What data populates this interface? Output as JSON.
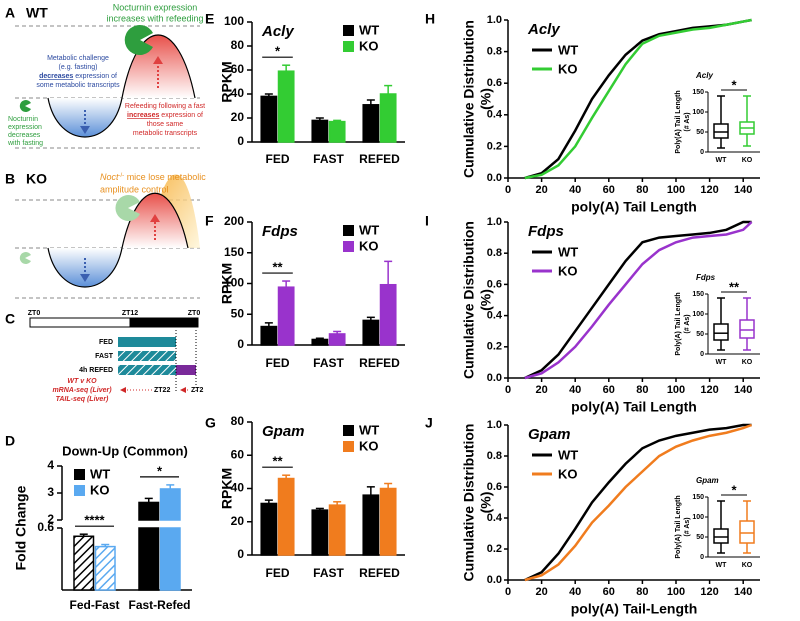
{
  "panel_letters": [
    "A",
    "B",
    "C",
    "D",
    "E",
    "F",
    "G",
    "H",
    "I",
    "J"
  ],
  "diagram_a": {
    "title": "WT",
    "noct_up": [
      "Nocturnin expression",
      "increases with refeeding"
    ],
    "challenge": [
      "Metabolic challenge",
      "(e.g. fasting)"
    ],
    "challenge_em": "decreases",
    "challenge_rest": [
      " expression of",
      "some metabolic transcripts"
    ],
    "noct_down": [
      "Nocturnin",
      "expression",
      "decreases",
      "with fasting"
    ],
    "refeed": "Refeeding following a fast",
    "refeed_em": "increases",
    "refeed_rest": [
      " expression of",
      "those same",
      "metabolic transcripts"
    ]
  },
  "diagram_b": {
    "title": "KO",
    "gene": "Noct",
    "genotype": "-/-",
    "note": [
      " mice lose metabolic",
      "amplitude control"
    ]
  },
  "diagram_c": {
    "zt_top": [
      "ZT0",
      "ZT12",
      "ZT0"
    ],
    "rows": [
      "FED",
      "FAST",
      "4h REFED"
    ],
    "assay": [
      "WT v KO",
      "mRNA-seq (Liver)",
      "TAIL-seq (Liver)"
    ],
    "zt_markers": [
      "ZT22",
      "ZT2"
    ]
  },
  "chart_data": [
    {
      "type": "bar",
      "title": "Down-Up (Common)",
      "ylabel": "Fold Change",
      "categories": [
        "Fed-Fast",
        "Fast-Refed"
      ],
      "hatched": [
        true,
        false
      ],
      "legend": "upper left",
      "segments": [
        {
          "ylim": [
            0,
            0.6
          ],
          "yticks": [
            0.6
          ]
        },
        {
          "ylim": [
            2,
            4
          ],
          "yticks": [
            2,
            3,
            4
          ]
        }
      ],
      "series": [
        {
          "name": "WT",
          "color": "#000000",
          "values": [
            0.52,
            2.65
          ],
          "errors": [
            0.02,
            0.15
          ]
        },
        {
          "name": "KO",
          "color": "#5aa9f0",
          "values": [
            0.42,
            3.15
          ],
          "errors": [
            0.02,
            0.15
          ]
        }
      ],
      "significance": [
        "****",
        "*"
      ]
    },
    {
      "type": "bar",
      "title": "Acly",
      "ylabel": "RPKM",
      "categories": [
        "FED",
        "FAST",
        "REFED"
      ],
      "legend": "upper right",
      "ylim": [
        0,
        100
      ],
      "yticks": [
        0,
        20,
        40,
        60,
        80,
        100
      ],
      "series": [
        {
          "name": "WT",
          "color": "#000000",
          "values": [
            38,
            18,
            31
          ],
          "errors": [
            2,
            2,
            4
          ]
        },
        {
          "name": "KO",
          "color": "#33cc33",
          "values": [
            59,
            17,
            40
          ],
          "errors": [
            5,
            1,
            7
          ]
        }
      ],
      "significance": [
        "*",
        null,
        null
      ]
    },
    {
      "type": "bar",
      "title": "Fdps",
      "ylabel": "RPKM",
      "categories": [
        "FED",
        "FAST",
        "REFED"
      ],
      "legend": "upper right",
      "ylim": [
        0,
        200
      ],
      "yticks": [
        0,
        50,
        100,
        150,
        200
      ],
      "series": [
        {
          "name": "WT",
          "color": "#000000",
          "values": [
            30,
            9,
            40
          ],
          "errors": [
            6,
            2,
            5
          ]
        },
        {
          "name": "KO",
          "color": "#9933cc",
          "values": [
            94,
            18,
            98
          ],
          "errors": [
            10,
            4,
            38
          ]
        }
      ],
      "significance": [
        "**",
        null,
        null
      ]
    },
    {
      "type": "bar",
      "title": "Gpam",
      "ylabel": "RPKM",
      "categories": [
        "FED",
        "FAST",
        "REFED"
      ],
      "legend": "upper right",
      "ylim": [
        0,
        80
      ],
      "yticks": [
        0,
        20,
        40,
        60,
        80
      ],
      "series": [
        {
          "name": "WT",
          "color": "#000000",
          "values": [
            31,
            27,
            36
          ],
          "errors": [
            2,
            1,
            5
          ]
        },
        {
          "name": "KO",
          "color": "#f07c1e",
          "values": [
            46,
            30,
            40
          ],
          "errors": [
            2,
            2,
            3
          ]
        }
      ],
      "significance": [
        "**",
        null,
        null
      ]
    },
    {
      "type": "line",
      "title": "Acly",
      "xlabel": "poly(A) Tail Length",
      "ylabel": [
        "Cumulative Distribution",
        "(%)"
      ],
      "legend": "upper left",
      "xlim": [
        0,
        150
      ],
      "xticks": [
        0,
        20,
        40,
        60,
        80,
        100,
        120,
        140
      ],
      "ylim": [
        0,
        1
      ],
      "yticks": [
        {
          "value": 0,
          "label": "0.0"
        },
        0.2,
        0.4,
        0.6,
        0.8,
        {
          "value": 1,
          "label": "1.0"
        }
      ],
      "x": [
        10,
        20,
        30,
        40,
        50,
        60,
        70,
        80,
        90,
        100,
        110,
        120,
        130,
        140,
        145
      ],
      "series": [
        {
          "name": "WT",
          "color": "#000000",
          "values": [
            0,
            0.03,
            0.12,
            0.3,
            0.5,
            0.65,
            0.78,
            0.87,
            0.91,
            0.93,
            0.95,
            0.96,
            0.97,
            0.99,
            1
          ]
        },
        {
          "name": "KO",
          "color": "#33cc33",
          "values": [
            0,
            0.02,
            0.08,
            0.2,
            0.38,
            0.55,
            0.72,
            0.85,
            0.9,
            0.92,
            0.94,
            0.95,
            0.97,
            0.99,
            1
          ]
        }
      ],
      "inset": {
        "title": "Acly",
        "ylabel": [
          "Poly(A) Tail Length",
          "(# As)"
        ],
        "ylim": [
          0,
          150
        ],
        "yticks": [
          0,
          50,
          100,
          150
        ],
        "categories": [
          "WT",
          "KO"
        ],
        "significance": "*",
        "boxes": [
          {
            "color": "#000000",
            "min": 10,
            "q1": 35,
            "median": 50,
            "q3": 70,
            "max": 140
          },
          {
            "color": "#33cc33",
            "min": 15,
            "q1": 45,
            "median": 60,
            "q3": 75,
            "max": 140
          }
        ]
      }
    },
    {
      "type": "line",
      "title": "Fdps",
      "xlabel": "poly(A) Tail Length",
      "ylabel": [
        "Cumulative Distribution",
        "(%)"
      ],
      "legend": "upper left",
      "xlim": [
        0,
        150
      ],
      "xticks": [
        0,
        20,
        40,
        60,
        80,
        100,
        120,
        140
      ],
      "ylim": [
        0,
        1
      ],
      "yticks": [
        {
          "value": 0,
          "label": "0.0"
        },
        0.2,
        0.4,
        0.6,
        0.8,
        {
          "value": 1,
          "label": "1.0"
        }
      ],
      "x": [
        10,
        20,
        30,
        40,
        50,
        60,
        70,
        80,
        90,
        100,
        110,
        120,
        130,
        140,
        145
      ],
      "series": [
        {
          "name": "WT",
          "color": "#000000",
          "values": [
            0,
            0.05,
            0.15,
            0.3,
            0.45,
            0.6,
            0.75,
            0.87,
            0.9,
            0.91,
            0.92,
            0.93,
            0.95,
            1,
            1
          ]
        },
        {
          "name": "KO",
          "color": "#9933cc",
          "values": [
            0,
            0.03,
            0.1,
            0.2,
            0.33,
            0.47,
            0.6,
            0.73,
            0.82,
            0.87,
            0.9,
            0.91,
            0.92,
            0.95,
            1
          ]
        }
      ],
      "inset": {
        "title": "Fdps",
        "ylabel": [
          "Poly(A) Tail Length",
          "(# As)"
        ],
        "ylim": [
          0,
          150
        ],
        "yticks": [
          0,
          50,
          100,
          150
        ],
        "categories": [
          "WT",
          "KO"
        ],
        "significance": "**",
        "boxes": [
          {
            "color": "#000000",
            "min": 10,
            "q1": 35,
            "median": 52,
            "q3": 75,
            "max": 140
          },
          {
            "color": "#9933cc",
            "min": 10,
            "q1": 40,
            "median": 60,
            "q3": 85,
            "max": 140
          }
        ]
      }
    },
    {
      "type": "line",
      "title": "Gpam",
      "xlabel": "poly(A) Tail-Length",
      "ylabel": [
        "Cumulative Distribution",
        "(%)"
      ],
      "legend": "upper left",
      "xlim": [
        0,
        150
      ],
      "xticks": [
        0,
        20,
        40,
        60,
        80,
        100,
        120,
        140
      ],
      "ylim": [
        0,
        1
      ],
      "yticks": [
        {
          "value": 0,
          "label": "0.0"
        },
        0.2,
        0.4,
        0.6,
        0.8,
        {
          "value": 1,
          "label": "1.0"
        }
      ],
      "x": [
        10,
        20,
        30,
        40,
        50,
        60,
        70,
        80,
        90,
        100,
        110,
        120,
        130,
        140,
        145
      ],
      "series": [
        {
          "name": "WT",
          "color": "#000000",
          "values": [
            0,
            0.05,
            0.17,
            0.33,
            0.5,
            0.63,
            0.75,
            0.85,
            0.9,
            0.93,
            0.95,
            0.97,
            0.98,
            1,
            1
          ]
        },
        {
          "name": "KO",
          "color": "#f07c1e",
          "values": [
            0,
            0.03,
            0.1,
            0.22,
            0.37,
            0.48,
            0.6,
            0.7,
            0.8,
            0.86,
            0.9,
            0.93,
            0.95,
            0.98,
            1
          ]
        }
      ],
      "inset": {
        "title": "Gpam",
        "ylabel": [
          "Poly(A) Tail Length",
          "(# As)"
        ],
        "ylim": [
          0,
          150
        ],
        "yticks": [
          0,
          50,
          100,
          150
        ],
        "categories": [
          "WT",
          "KO"
        ],
        "significance": "*",
        "boxes": [
          {
            "color": "#000000",
            "min": 10,
            "q1": 35,
            "median": 50,
            "q3": 70,
            "max": 140
          },
          {
            "color": "#f07c1e",
            "min": 10,
            "q1": 35,
            "median": 60,
            "q3": 90,
            "max": 140
          }
        ]
      }
    }
  ]
}
